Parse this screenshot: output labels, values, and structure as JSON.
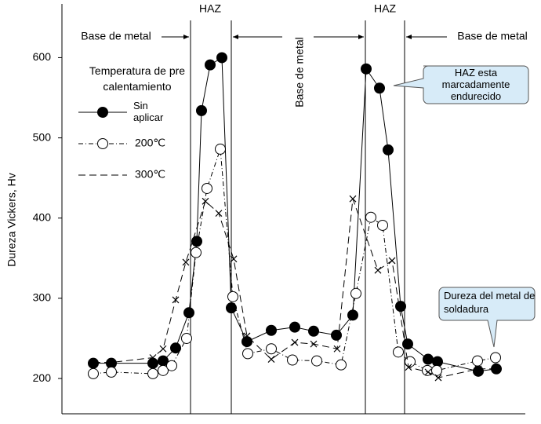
{
  "chart_data": {
    "type": "line",
    "y_label": "Dureza Vickers, Hv",
    "ylim": [
      156,
      667
    ],
    "yticks": [
      200,
      300,
      400,
      500,
      600
    ],
    "xlim": [
      0,
      591
    ],
    "zone_labels": [
      "HAZ",
      "HAZ"
    ],
    "region_labels": [
      "Base de metal",
      "Base de metal",
      "Base de metal"
    ],
    "legend_title": "Temperatura de pre calentamiento",
    "annotations": [
      "HAZ esta marcadamente endurecido",
      "Dureza del metal de soldadura"
    ],
    "series": [
      {
        "name": "Sin aplicar",
        "color": "#000000",
        "marker": "filled-circle",
        "x": [
          40,
          63,
          116,
          129,
          145,
          162,
          172,
          178,
          189,
          204,
          216,
          236,
          267,
          297,
          321,
          350,
          371,
          388,
          405,
          416,
          432,
          441,
          467,
          479,
          531,
          554
        ],
        "values": [
          219,
          219,
          219,
          222,
          238,
          282,
          371,
          534,
          591,
          600,
          288,
          246,
          260,
          264,
          259,
          254,
          279,
          586,
          562,
          485,
          290,
          243,
          224,
          221,
          209,
          212
        ]
      },
      {
        "name": "200℃",
        "color": "#000000",
        "marker": "open-circle",
        "x": [
          40,
          63,
          116,
          129,
          140,
          159,
          171,
          185,
          202,
          218,
          237,
          267,
          294,
          325,
          356,
          375,
          394,
          409,
          429,
          444,
          466,
          478,
          530,
          553
        ],
        "values": [
          206,
          208,
          206,
          210,
          216,
          250,
          357,
          437,
          486,
          302,
          231,
          237,
          223,
          222,
          217,
          306,
          401,
          391,
          233,
          221,
          210,
          210,
          222,
          226
        ]
      },
      {
        "name": "300℃",
        "color": "#000000",
        "marker": "cross",
        "x": [
          40,
          63,
          116,
          129,
          145,
          158,
          183,
          200,
          219,
          236,
          267,
          297,
          321,
          351,
          371,
          403,
          421,
          442,
          467,
          480,
          531,
          554
        ],
        "values": [
          220,
          220,
          226,
          237,
          298,
          345,
          421,
          406,
          349,
          253,
          224,
          245,
          243,
          237,
          424,
          335,
          347,
          214,
          208,
          201,
          212,
          212
        ]
      }
    ]
  }
}
